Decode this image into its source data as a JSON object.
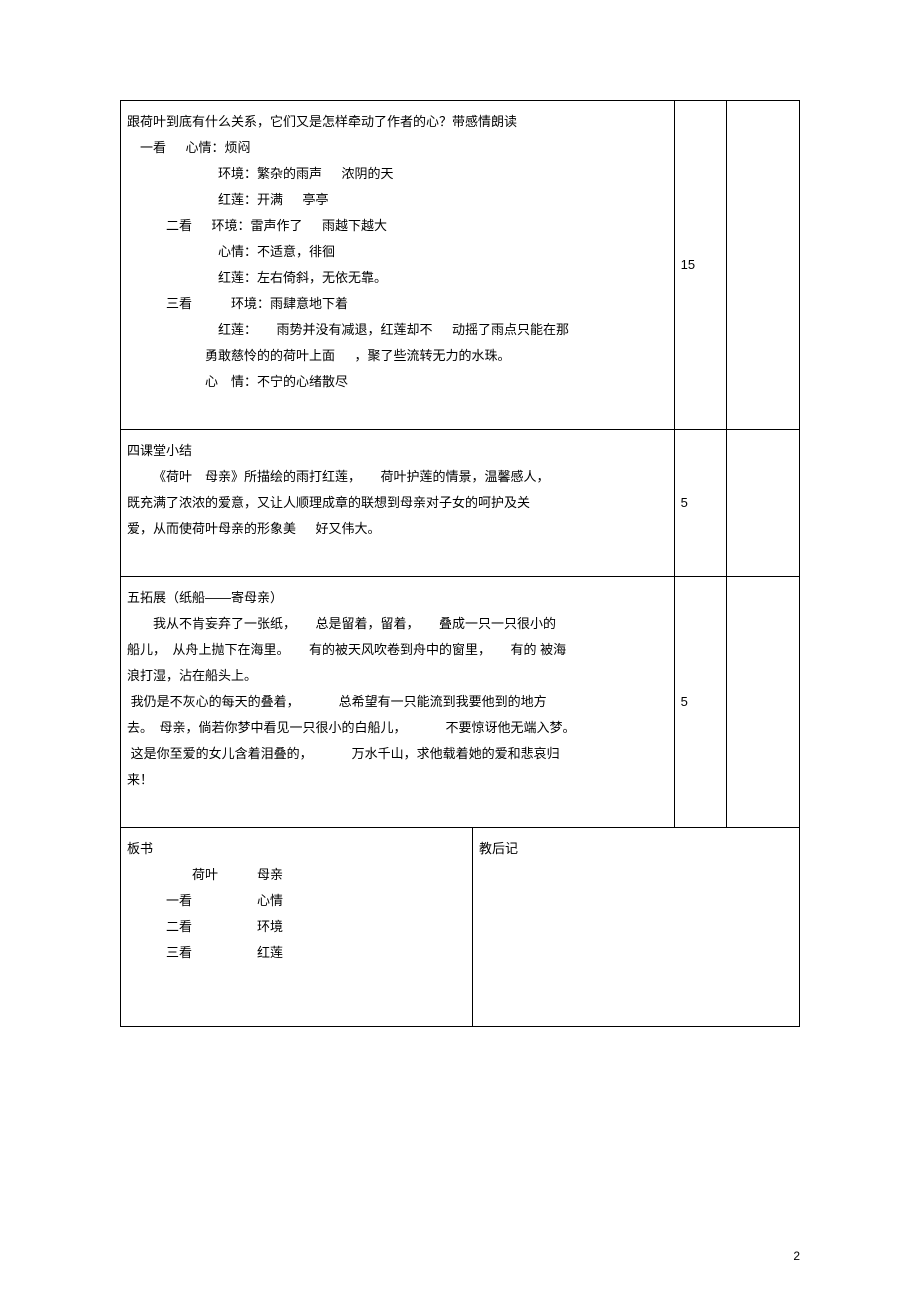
{
  "row1": {
    "intro": "跟荷叶到底有什么关系，它们又是怎样牵动了作者的心？带感情朗读",
    "look1_label": "一看",
    "look1_mood": "心情：烦闷",
    "env1a": "环境：繁杂的雨声",
    "env1b": "浓阴的天",
    "lotus1a": "红莲：开满",
    "lotus1b": "亭亭",
    "look2_label": "二看",
    "env2a": "环境：雷声作了",
    "env2b": "雨越下越大",
    "mood2": "心情：不适意，徘徊",
    "lotus2": "红莲：左右倚斜，无依无靠。",
    "look3_label": "三看",
    "env3": "环境：雨肆意地下着",
    "lotus3a": "红莲：",
    "lotus3b": "雨势并没有减退，红莲却不",
    "lotus3c": "动摇了雨点只能在那",
    "lotus3d": "勇敢慈怜的的荷叶上面",
    "lotus3e": "，聚了些流转无力的水珠。",
    "mood3_label": "心　情：不宁的心绪散尽",
    "time": "15"
  },
  "row2": {
    "title": "四课堂小结",
    "p1a": "《荷叶　母亲》所描绘的雨打红莲，",
    "p1b": "荷叶护莲的情景，温馨感人，",
    "p2": "既充满了浓浓的爱意，又让人顺理成章的联想到母亲对子女的呵护及关",
    "p3a": "爱，从而使荷叶母亲的形象美",
    "p3b": "好又伟大。",
    "time": "5"
  },
  "row3": {
    "title": "五拓展（纸船——寄母亲）",
    "l1a": "我从不肯妄弃了一张纸，",
    "l1b": "总是留着，留着，",
    "l1c": "叠成一只一只很小的",
    "l2a": "船儿，　从舟上抛下在海里。",
    "l2b": "有的被天风吹卷到舟中的窗里，",
    "l2c": "有的",
    "l2d": "被海",
    "l3": "浪打湿，沾在船头上。",
    "l4a": "我仍是不灰心的每天的叠着，",
    "l4b": "总希望有一只能流到我要他到的地方",
    "l5a": "去。　母亲，倘若你梦中看见一只很小的白船儿，",
    "l5b": "不要惊讶他无端入梦。",
    "l6a": "这是你至爱的女儿含着泪叠的，",
    "l6b": "万水千山，求他载着她的爱和悲哀归",
    "l7": "来！",
    "time": "5"
  },
  "board": {
    "left_title": "板书",
    "right_title": "教后记",
    "h1a": "荷叶",
    "h1b": "母亲",
    "r1a": "一看",
    "r1b": "心情",
    "r2a": "二看",
    "r2b": "环境",
    "r3a": "三看",
    "r3b": "红莲"
  },
  "pagenum": "2"
}
